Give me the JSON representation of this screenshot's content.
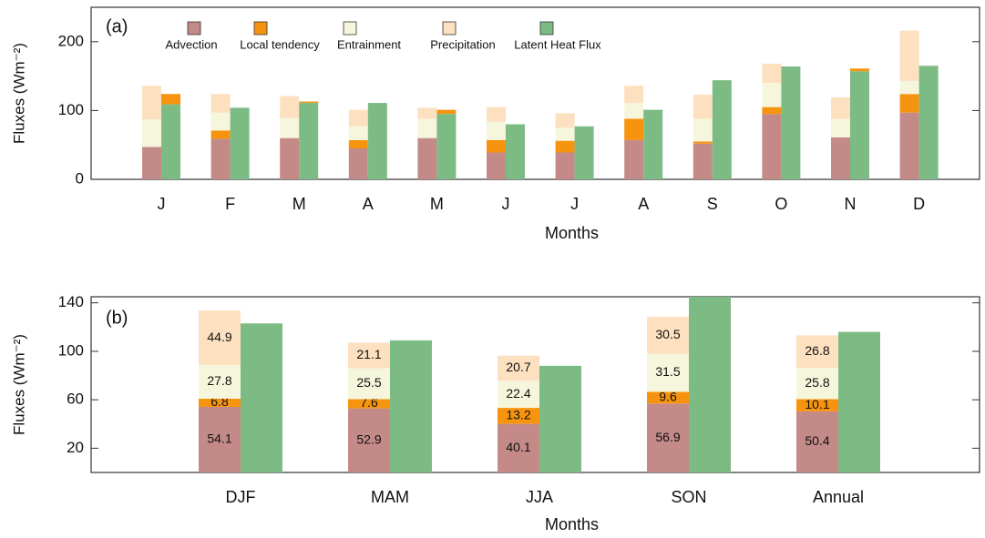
{
  "chart_data": [
    {
      "type": "bar",
      "panel": "(a)",
      "ylabel": "Fluxes (Wm⁻²)",
      "xlabel": "Months",
      "categories": [
        "J",
        "F",
        "M",
        "A",
        "M",
        "J",
        "J",
        "A",
        "S",
        "O",
        "N",
        "D"
      ],
      "ylim": [
        0,
        250
      ],
      "yticks": [
        0,
        100,
        200
      ],
      "legend": "top-left",
      "series": [
        {
          "name": "Advection",
          "color": "#c48a88",
          "values": [
            47,
            59,
            60,
            45,
            60,
            39,
            39,
            57,
            52,
            95,
            61,
            97
          ]
        },
        {
          "name": "Local tendency",
          "color": "#f7940f",
          "values": [
            -15,
            12,
            -2,
            12,
            -6,
            18,
            17,
            31,
            3,
            10,
            -4,
            27
          ]
        },
        {
          "name": "Entrainment",
          "color": "#f6f6dc",
          "values": [
            40,
            26,
            29,
            20,
            28,
            27,
            19,
            23,
            33,
            35,
            27,
            19
          ]
        },
        {
          "name": "Precipitation",
          "color": "#fde0bf",
          "values": [
            49,
            27,
            32,
            24,
            16,
            21,
            21,
            25,
            35,
            28,
            31,
            73
          ]
        },
        {
          "name": "Latent Heat Flux",
          "color": "#7dbb85",
          "stack": false,
          "values": [
            109,
            104,
            111,
            111,
            95,
            80,
            77,
            101,
            144,
            164,
            157,
            165
          ]
        }
      ]
    },
    {
      "type": "bar",
      "panel": "(b)",
      "ylabel": "Fluxes (Wm⁻²)",
      "xlabel": "Months",
      "categories": [
        "DJF",
        "MAM",
        "JJA",
        "SON",
        "Annual"
      ],
      "ylim": [
        0,
        145
      ],
      "yticks": [
        20,
        60,
        100,
        140
      ],
      "data_labels": true,
      "series": [
        {
          "color": "#c48a88",
          "values": [
            54.1,
            52.9,
            40.1,
            56.9,
            50.4
          ]
        },
        {
          "color": "#f7940f",
          "values": [
            6.8,
            7.6,
            13.2,
            9.6,
            10.1
          ]
        },
        {
          "color": "#f6f6dc",
          "values": [
            27.8,
            25.5,
            22.4,
            31.5,
            25.8
          ]
        },
        {
          "color": "#fde0bf",
          "values": [
            44.9,
            21.1,
            20.7,
            30.5,
            26.8
          ]
        },
        {
          "color": "#7dbb85",
          "stack": false,
          "values": [
            123,
            109,
            88,
            145,
            116
          ]
        }
      ]
    }
  ]
}
